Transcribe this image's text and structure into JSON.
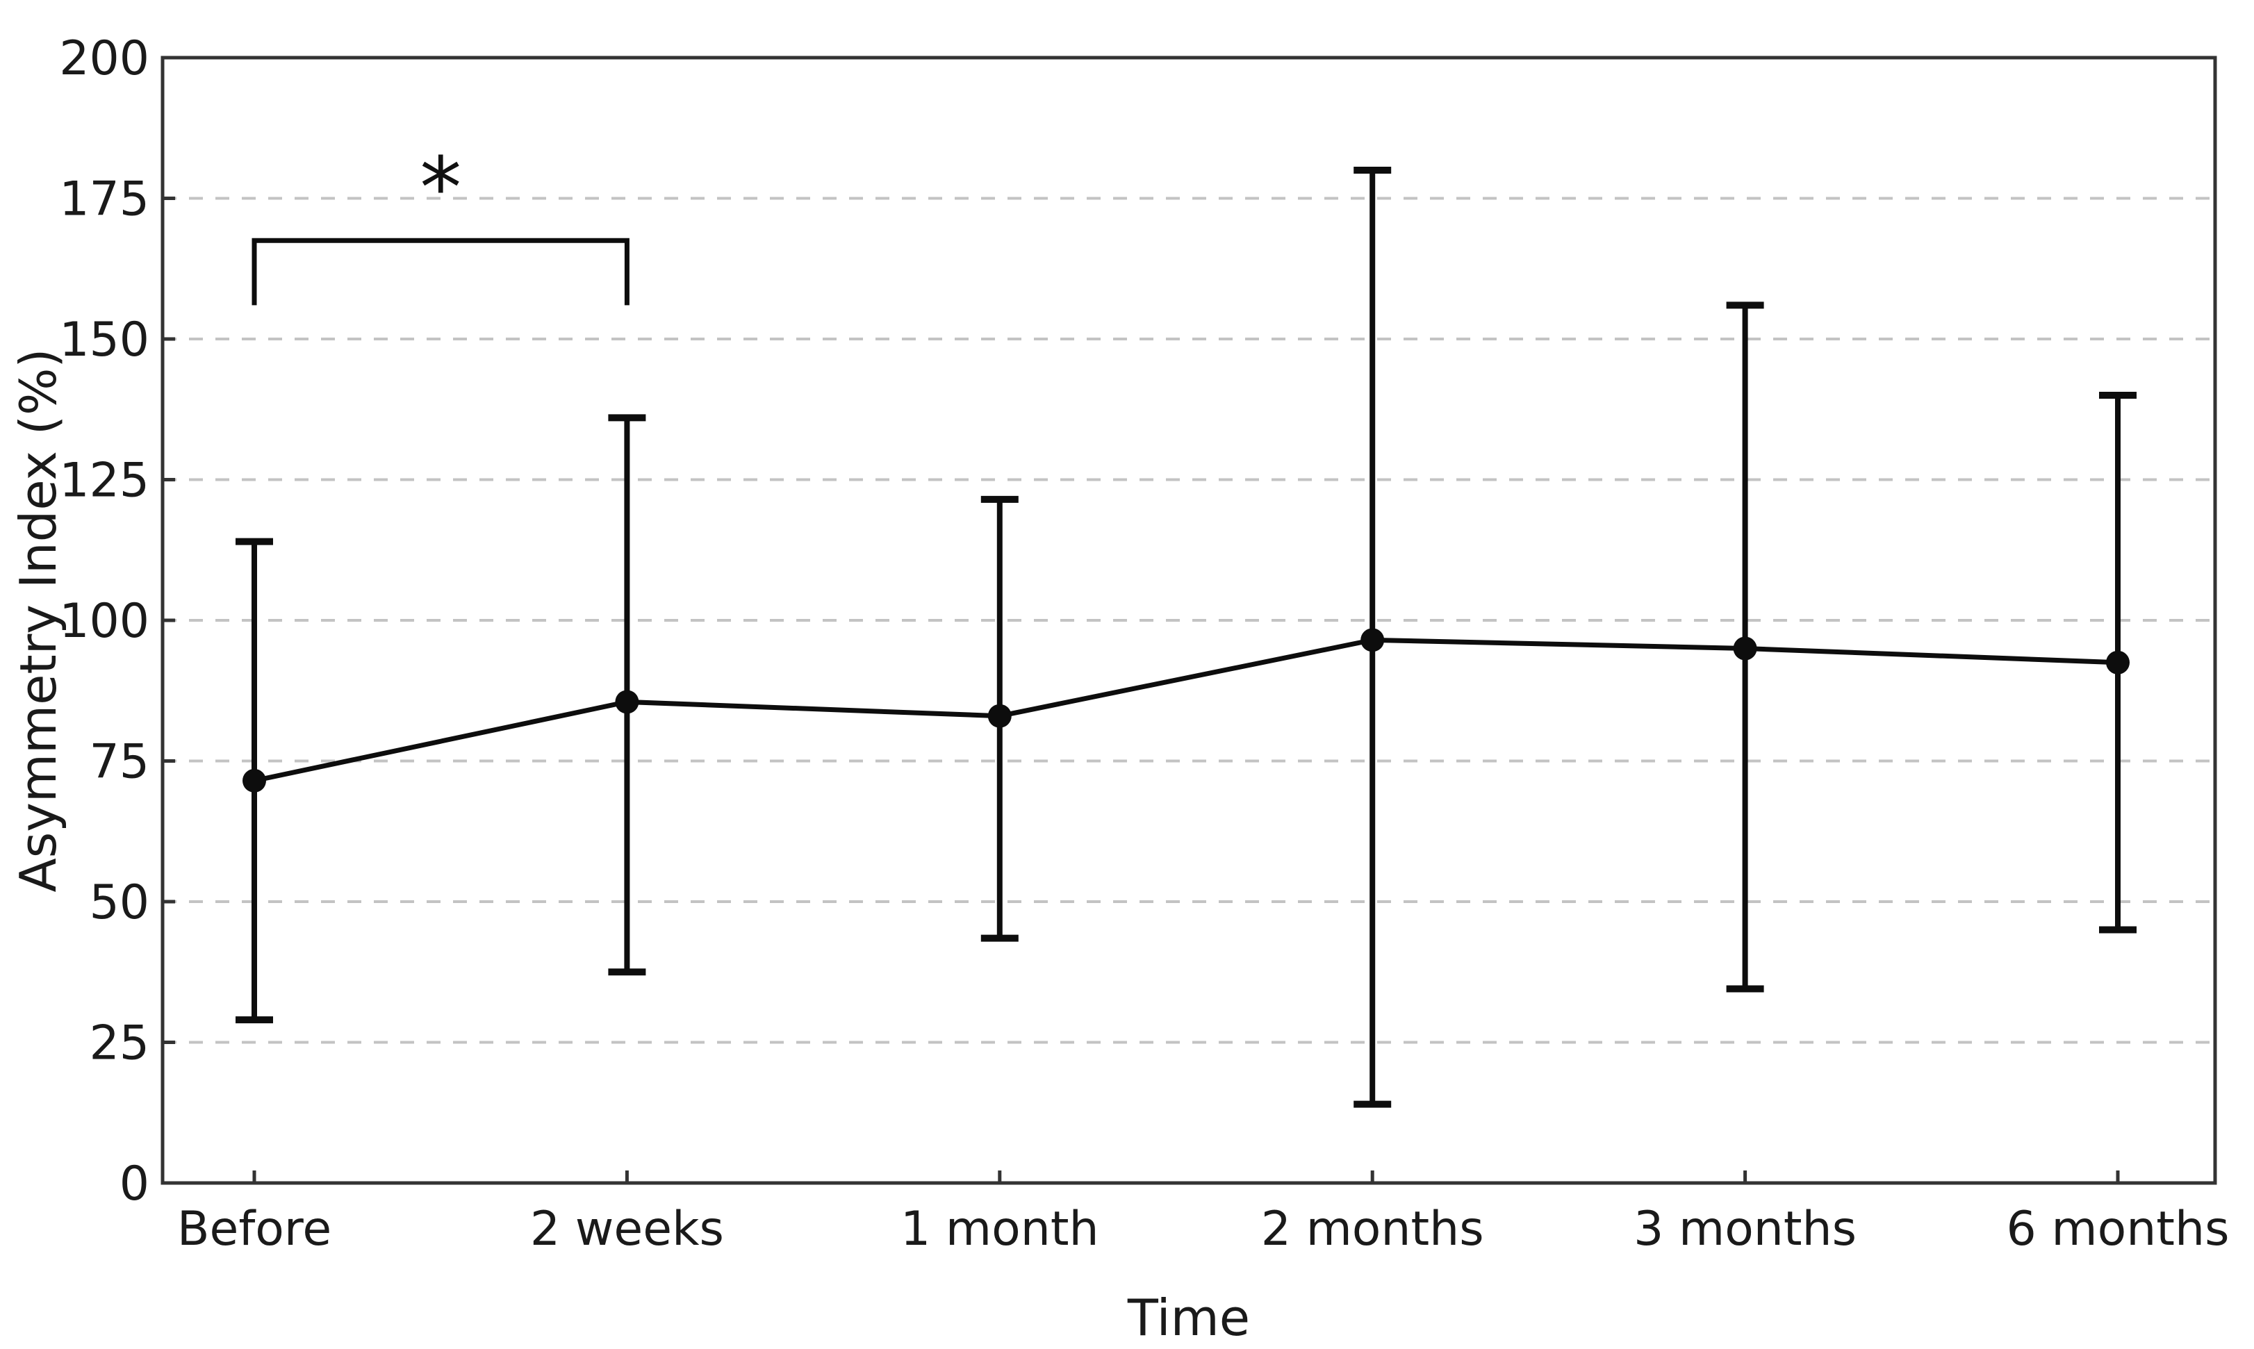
{
  "figure": {
    "background": "#ffffff",
    "colors": {
      "ink": "#0d0d0d",
      "frame": "#333333",
      "grid": "#c3c3c3",
      "text": "#1a1a1a"
    }
  },
  "chart_data": {
    "type": "line",
    "title": "",
    "xlabel": "Time",
    "ylabel": "Asymmetry Index (%)",
    "categories": [
      "Before",
      "2 weeks",
      "1 month",
      "2 months",
      "3 months",
      "6 months"
    ],
    "series": [
      {
        "values": [
          71.5,
          85.5,
          83,
          96.5,
          95,
          92.5
        ],
        "error_upper": [
          114,
          136,
          121.5,
          180,
          156,
          140
        ],
        "error_lower": [
          29,
          37.5,
          43.5,
          14,
          34.5,
          45
        ]
      }
    ],
    "ylim": [
      0,
      200
    ],
    "yticks": [
      0,
      25,
      50,
      75,
      100,
      125,
      150,
      175,
      200
    ],
    "grid": "horizontal-dashed",
    "legend": "none",
    "marker": "filled-circle",
    "annotation": {
      "type": "significance-bracket",
      "between": [
        "Before",
        "2 weeks"
      ],
      "label": "*",
      "bracket_y_value": 167.5,
      "bracket_tick_to_value": 156,
      "label_y_value": 179.5
    }
  }
}
